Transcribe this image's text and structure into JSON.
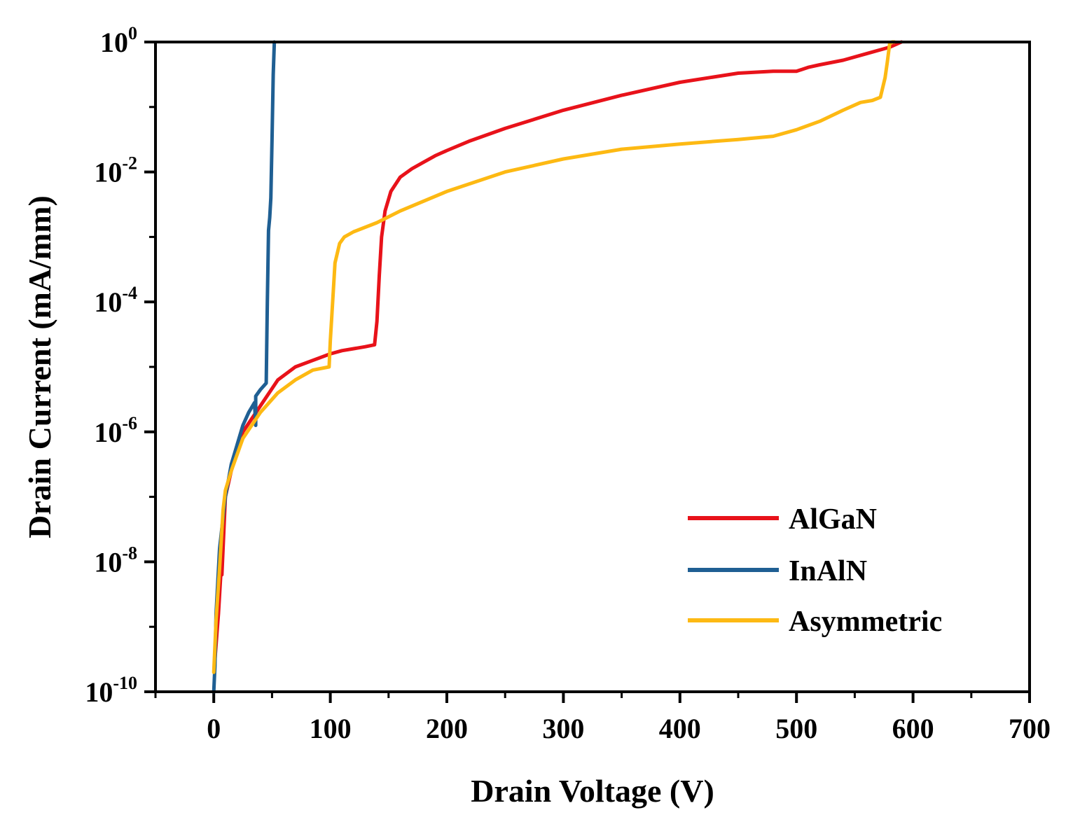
{
  "chart_data": {
    "type": "line",
    "title": "",
    "xlabel": "Drain Voltage (V)",
    "ylabel": "Drain Current (mA/mm)",
    "xlim": [
      -50,
      700
    ],
    "ylim_log10": [
      -10,
      0
    ],
    "yscale": "log",
    "grid": false,
    "legend_position": "bottom-right",
    "x_ticks": [
      0,
      100,
      200,
      300,
      400,
      500,
      600,
      700
    ],
    "x_tick_labels": [
      "0",
      "100",
      "200",
      "300",
      "400",
      "500",
      "600",
      "700"
    ],
    "y_ticks_log10": [
      -10,
      -8,
      -6,
      -4,
      -2,
      0
    ],
    "y_tick_base": "10",
    "y_tick_exponents": [
      "-10",
      "-8",
      "-6",
      "-4",
      "-2",
      "0"
    ],
    "series": [
      {
        "name": "AlGaN",
        "color": "#e8121a",
        "x": [
          1,
          4,
          6,
          7,
          10,
          15,
          25,
          40,
          55,
          70,
          85,
          100,
          110,
          120,
          130,
          138,
          140,
          142,
          144,
          147,
          152,
          160,
          170,
          180,
          190,
          200,
          220,
          250,
          300,
          350,
          400,
          450,
          480,
          500,
          510,
          520,
          540,
          560,
          580,
          590
        ],
        "y_log10": [
          -9.5,
          -8.8,
          -8.2,
          -8.2,
          -7.0,
          -6.6,
          -6.0,
          -5.6,
          -5.2,
          -5.0,
          -4.9,
          -4.8,
          -4.75,
          -4.72,
          -4.69,
          -4.66,
          -4.3,
          -3.6,
          -3.0,
          -2.6,
          -2.3,
          -2.08,
          -1.95,
          -1.85,
          -1.75,
          -1.67,
          -1.52,
          -1.33,
          -1.05,
          -0.82,
          -0.62,
          -0.48,
          -0.45,
          -0.45,
          -0.39,
          -0.35,
          -0.28,
          -0.18,
          -0.08,
          0.0
        ]
      },
      {
        "name": "InAlN",
        "color": "#1f5f93",
        "x": [
          0,
          1,
          2,
          5,
          10,
          15,
          20,
          25,
          30,
          35,
          36,
          36,
          40,
          45,
          46,
          47,
          48,
          49,
          50,
          51,
          52
        ],
        "y_log10": [
          -10.0,
          -9.6,
          -8.8,
          -7.8,
          -7.0,
          -6.5,
          -6.2,
          -5.9,
          -5.7,
          -5.55,
          -5.9,
          -5.45,
          -5.35,
          -5.25,
          -4.0,
          -2.9,
          -2.7,
          -2.4,
          -1.5,
          -0.5,
          0.0
        ]
      },
      {
        "name": "Asymmetric",
        "color": "#fdb913",
        "x": [
          0,
          2,
          5,
          8,
          10,
          15,
          25,
          40,
          55,
          70,
          85,
          99,
          100,
          104,
          108,
          112,
          120,
          140,
          160,
          200,
          250,
          300,
          350,
          400,
          450,
          480,
          500,
          520,
          540,
          555,
          565,
          572,
          576,
          578,
          580,
          582,
          584
        ],
        "y_log10": [
          -9.7,
          -8.9,
          -8.1,
          -7.2,
          -6.9,
          -6.6,
          -6.1,
          -5.7,
          -5.4,
          -5.2,
          -5.05,
          -5.0,
          -4.6,
          -3.4,
          -3.1,
          -3.0,
          -2.92,
          -2.78,
          -2.6,
          -2.3,
          -2.0,
          -1.8,
          -1.65,
          -1.57,
          -1.5,
          -1.45,
          -1.35,
          -1.22,
          -1.05,
          -0.93,
          -0.9,
          -0.85,
          -0.55,
          -0.3,
          -0.02,
          0.0,
          0.0
        ]
      }
    ]
  }
}
